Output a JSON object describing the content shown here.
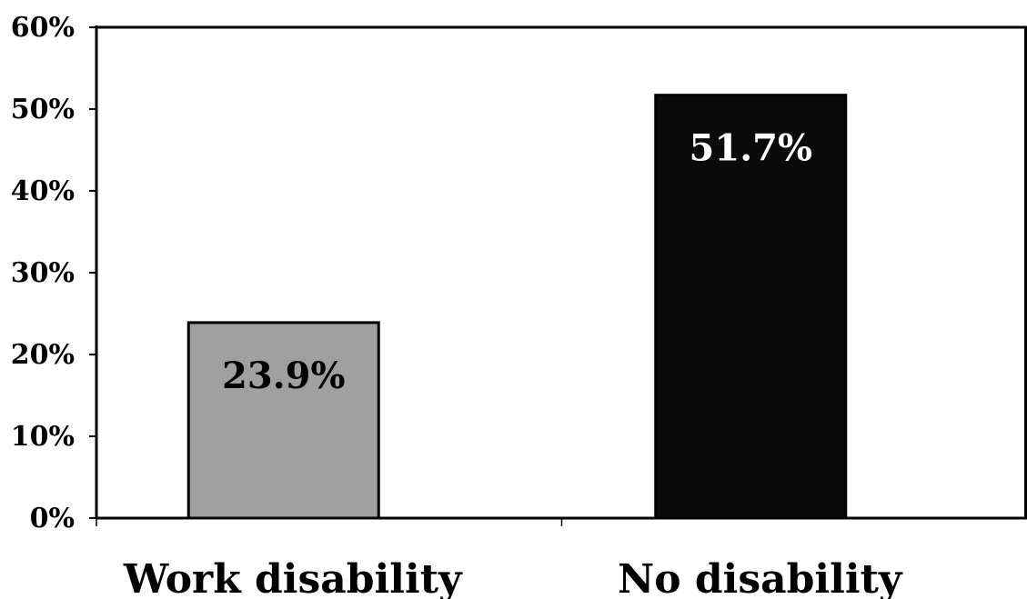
{
  "chart_data": {
    "type": "bar",
    "categories": [
      "Work disability",
      "No disability"
    ],
    "values": [
      23.9,
      51.7
    ],
    "data_labels": [
      "23.9%",
      "51.7%"
    ],
    "bar_colors": [
      "#a0a0a0",
      "#0a0a0a"
    ],
    "data_label_colors": [
      "#000000",
      "#ffffff"
    ],
    "ylim": [
      0,
      60
    ],
    "yticks": [
      0,
      10,
      20,
      30,
      40,
      50,
      60
    ],
    "ytick_labels": [
      "0%",
      "10%",
      "20%",
      "30%",
      "40%",
      "50%",
      "60%"
    ],
    "grid": false,
    "legend": "none",
    "title": "",
    "xlabel": "",
    "ylabel": ""
  }
}
